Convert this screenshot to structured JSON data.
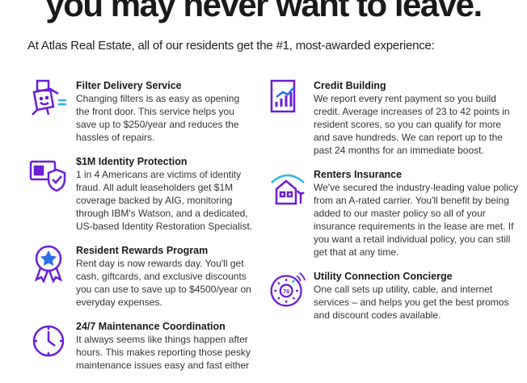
{
  "headline": "you may never want to leave.",
  "intro": "At Atlas Real Estate, all of our residents get the #1, most-awarded experience:",
  "accent_color": "#6a1fd8",
  "items": [
    {
      "icon": "filter-box-icon",
      "title": "Filter Delivery Service",
      "body": "Changing filters is as easy as opening the front door. This service helps you save up to $250/year and reduces the hassles of repairs."
    },
    {
      "icon": "id-shield-icon",
      "title": "$1M Identity Protection",
      "body": "1 in 4 Americans are victims of identity fraud. All adult leaseholders get $1M coverage backed by AIG, monitoring through IBM's Watson, and a dedicated, US-based Identity Restoration Specialist."
    },
    {
      "icon": "award-ribbon-icon",
      "title": "Resident Rewards Program",
      "body": "Rent day is now rewards day. You'll get cash, giftcards, and exclusive discounts you can use to save up to $4500/year on everyday expenses."
    },
    {
      "icon": "clock-icon",
      "title": "24/7 Maintenance Coordination",
      "body": "It always seems like things happen after hours. This makes reporting those pesky maintenance issues easy and fast either"
    },
    {
      "icon": "credit-chart-icon",
      "title": "Credit Building",
      "body": "We report every rent payment so you build credit. Average increases of 23 to 42 points in resident scores, so you can qualify for more and save hundreds. We can report up to the past 24 months for an immediate boost."
    },
    {
      "icon": "house-umbrella-icon",
      "title": "Renters Insurance",
      "body": "We've secured the industry-leading value policy from an A-rated carrier. You'll benefit by being added to our master policy so all of your insurance requirements in the lease are met. If you want a retail individual policy, you can still get that at any time."
    },
    {
      "icon": "thermostat-icon",
      "title": "Utility Connection Concierge",
      "body": "One call sets up utility, cable, and internet services – and helps you get the best promos and discount codes available.",
      "icon_text": "76"
    }
  ]
}
